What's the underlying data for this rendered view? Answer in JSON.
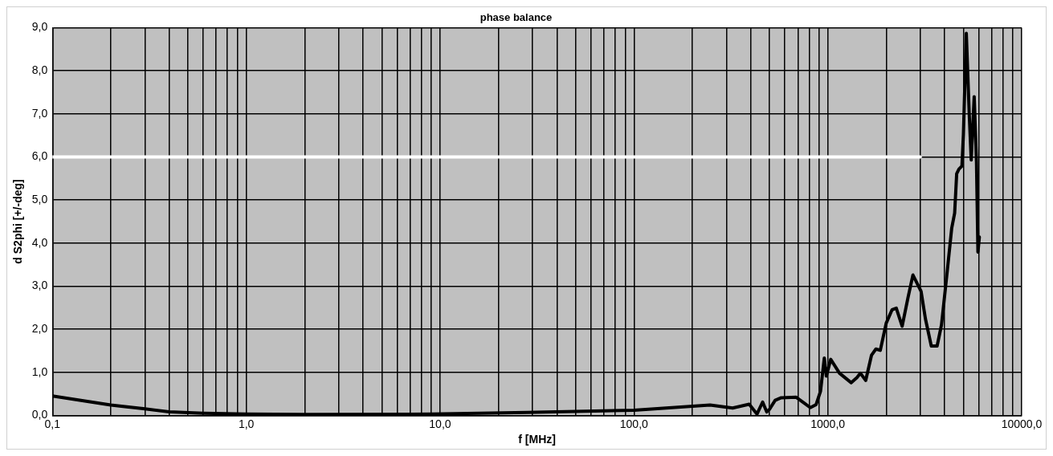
{
  "chart_data": {
    "type": "line",
    "title": "phase balance",
    "xlabel": "f [MHz]",
    "ylabel": "d S2phi [+/-deg]",
    "log": "x",
    "grid": true,
    "legend": false,
    "marker": "none",
    "line_style": "solid",
    "xlim": [
      0.1,
      10000
    ],
    "xticks": [
      {
        "value": 0.1,
        "label": "0,1"
      },
      {
        "value": 0.2,
        "label": null
      },
      {
        "value": 0.3,
        "label": null
      },
      {
        "value": 0.4,
        "label": null
      },
      {
        "value": 0.5,
        "label": null
      },
      {
        "value": 0.6,
        "label": null
      },
      {
        "value": 0.7,
        "label": null
      },
      {
        "value": 0.8,
        "label": null
      },
      {
        "value": 0.9,
        "label": null
      },
      {
        "value": 1,
        "label": "1,0"
      },
      {
        "value": 2,
        "label": null
      },
      {
        "value": 3,
        "label": null
      },
      {
        "value": 4,
        "label": null
      },
      {
        "value": 5,
        "label": null
      },
      {
        "value": 6,
        "label": null
      },
      {
        "value": 7,
        "label": null
      },
      {
        "value": 8,
        "label": null
      },
      {
        "value": 9,
        "label": null
      },
      {
        "value": 10,
        "label": "10,0"
      },
      {
        "value": 20,
        "label": null
      },
      {
        "value": 30,
        "label": null
      },
      {
        "value": 40,
        "label": null
      },
      {
        "value": 50,
        "label": null
      },
      {
        "value": 60,
        "label": null
      },
      {
        "value": 70,
        "label": null
      },
      {
        "value": 80,
        "label": null
      },
      {
        "value": 90,
        "label": null
      },
      {
        "value": 100,
        "label": "100,0"
      },
      {
        "value": 200,
        "label": null
      },
      {
        "value": 300,
        "label": null
      },
      {
        "value": 400,
        "label": null
      },
      {
        "value": 500,
        "label": null
      },
      {
        "value": 600,
        "label": null
      },
      {
        "value": 700,
        "label": null
      },
      {
        "value": 800,
        "label": null
      },
      {
        "value": 900,
        "label": null
      },
      {
        "value": 1000,
        "label": "1000,0"
      },
      {
        "value": 2000,
        "label": null
      },
      {
        "value": 3000,
        "label": null
      },
      {
        "value": 4000,
        "label": null
      },
      {
        "value": 5000,
        "label": null
      },
      {
        "value": 6000,
        "label": null
      },
      {
        "value": 7000,
        "label": null
      },
      {
        "value": 8000,
        "label": null
      },
      {
        "value": 9000,
        "label": null
      },
      {
        "value": 10000,
        "label": "10000,0"
      }
    ],
    "ylim": [
      0,
      9
    ],
    "yticks": [
      {
        "value": 0,
        "label": "0,0"
      },
      {
        "value": 1,
        "label": "1,0"
      },
      {
        "value": 2,
        "label": "2,0"
      },
      {
        "value": 3,
        "label": "3,0"
      },
      {
        "value": 4,
        "label": "4,0"
      },
      {
        "value": 5,
        "label": "5,0"
      },
      {
        "value": 6,
        "label": "6,0"
      },
      {
        "value": 7,
        "label": "7,0"
      },
      {
        "value": 8,
        "label": "8,0"
      },
      {
        "value": 9,
        "label": "9,0"
      }
    ],
    "series": [
      {
        "color": "#ffffff",
        "x": [
          0.1,
          3000
        ],
        "values": [
          6,
          6
        ]
      },
      {
        "color": "#000000",
        "x": [
          0.1,
          0.2,
          0.3,
          0.4,
          0.6,
          1,
          2,
          9,
          28,
          100,
          247,
          323,
          393,
          431,
          461,
          484,
          500,
          535,
          575,
          687,
          758,
          812,
          870,
          917,
          959,
          983,
          1035,
          1149,
          1319,
          1414,
          1473,
          1568,
          1681,
          1770,
          1865,
          2000,
          2143,
          2255,
          2418,
          2591,
          2749,
          3027,
          3189,
          3418,
          3662,
          3858,
          4136,
          4357,
          4511,
          4621,
          4747,
          4917,
          5005,
          5181,
          5363,
          5491,
          5689,
          5846,
          5947,
          6050
        ],
        "values": [
          0.45,
          0.24,
          0.15,
          0.08,
          0.05,
          0.03,
          0.02,
          0.03,
          0.07,
          0.12,
          0.24,
          0.17,
          0.26,
          0.03,
          0.31,
          0.08,
          0.14,
          0.35,
          0.41,
          0.42,
          0.28,
          0.18,
          0.25,
          0.56,
          1.33,
          0.91,
          1.3,
          0.98,
          0.76,
          0.88,
          0.98,
          0.81,
          1.4,
          1.54,
          1.51,
          2.14,
          2.45,
          2.49,
          2.07,
          2.73,
          3.26,
          2.88,
          2.24,
          1.61,
          1.61,
          2.1,
          3.37,
          4.35,
          4.7,
          5.61,
          5.72,
          5.79,
          6.52,
          8.87,
          7.01,
          5.93,
          7.4,
          5.89,
          3.79,
          4.14
        ]
      }
    ]
  }
}
